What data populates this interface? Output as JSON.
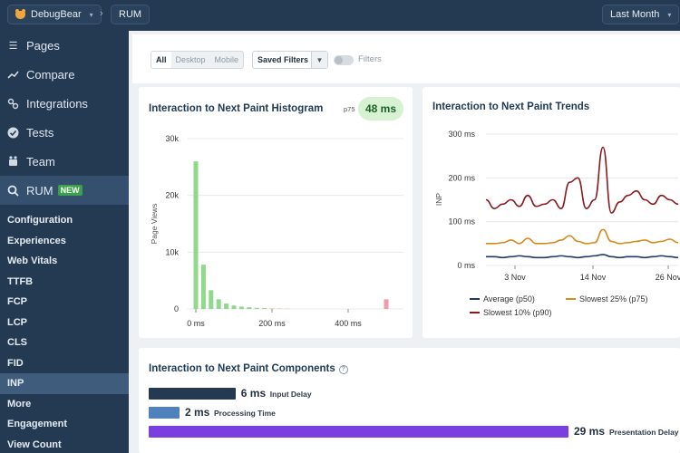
{
  "topbar": {
    "project": "DebugBear",
    "breadcrumb": "RUM",
    "date_range": "Last Month"
  },
  "sidebar": {
    "main_items": [
      {
        "label": "Pages",
        "icon": "list-icon"
      },
      {
        "label": "Compare",
        "icon": "compare-icon"
      },
      {
        "label": "Integrations",
        "icon": "integrations-icon"
      },
      {
        "label": "Tests",
        "icon": "check-circle-icon"
      },
      {
        "label": "Team",
        "icon": "team-icon"
      }
    ],
    "rum": {
      "label": "RUM",
      "badge": "NEW",
      "icon": "search-icon"
    },
    "sub_items": [
      "Configuration",
      "Experiences",
      "Web Vitals",
      "TTFB",
      "FCP",
      "LCP",
      "CLS",
      "FID",
      "INP",
      "More",
      "Engagement",
      "View Count"
    ],
    "active_sub": "INP"
  },
  "filters": {
    "segments": [
      "All",
      "Desktop",
      "Mobile"
    ],
    "selected_segment": "All",
    "saved_filters": "Saved Filters",
    "toggle_label": "Filters"
  },
  "histogram": {
    "title": "Interaction to Next Paint Histogram",
    "p75_label": "p75",
    "p75_value": "48 ms"
  },
  "trends": {
    "title": "Interaction to Next Paint Trends"
  },
  "components": {
    "title": "Interaction to Next Paint Components",
    "items": [
      {
        "value": "6 ms",
        "label": "Input Delay",
        "color": "#253a52",
        "ms": 6
      },
      {
        "value": "2 ms",
        "label": "Processing Time",
        "color": "#4f81bd",
        "ms": 2
      },
      {
        "value": "29 ms",
        "label": "Presentation Delay",
        "color": "#7b3fe0",
        "ms": 29
      }
    ]
  },
  "chart_data": [
    {
      "type": "bar",
      "ylabel": "Page Views",
      "ylim": [
        0,
        30000
      ],
      "yticks": [
        "0",
        "10k",
        "20k",
        "30k"
      ],
      "xticks": [
        "0 ms",
        "200 ms",
        "400 ms"
      ],
      "x_ms": [
        0,
        20,
        40,
        60,
        80,
        100,
        120,
        140,
        160,
        180,
        200,
        220,
        240,
        500
      ],
      "values": [
        26000,
        7800,
        3300,
        1700,
        950,
        600,
        400,
        300,
        200,
        150,
        120,
        100,
        80,
        1700
      ],
      "colors": [
        "#8fd98a",
        "#8fd98a",
        "#8fd98a",
        "#8fd98a",
        "#8fd98a",
        "#8fd98a",
        "#8fd98a",
        "#8fd98a",
        "#8fd98a",
        "#8fd98a",
        "#f2c9a0",
        "#f2c9a0",
        "#f2c9a0",
        "#f29aa7"
      ]
    },
    {
      "type": "line",
      "ylabel": "INP",
      "ylim": [
        0,
        300
      ],
      "yticks": [
        "0 ms",
        "100 ms",
        "200 ms",
        "300 ms"
      ],
      "xticks": [
        "3 Nov",
        "14 Nov",
        "26 Nov"
      ],
      "legend": [
        "Average (p50)",
        "Slowest 25% (p75)",
        "Slowest 10% (p90)"
      ],
      "series": [
        {
          "name": "Average (p50)",
          "color": "#1f3a66",
          "values": [
            20,
            20,
            18,
            20,
            22,
            20,
            18,
            18,
            20,
            22,
            20,
            18,
            20,
            22,
            25,
            20,
            18,
            20,
            20,
            18,
            20,
            22,
            20,
            18
          ]
        },
        {
          "name": "Slowest 25% (p75)",
          "color": "#d68a1a",
          "values": [
            50,
            50,
            52,
            58,
            50,
            62,
            50,
            50,
            52,
            58,
            68,
            55,
            50,
            52,
            82,
            55,
            50,
            52,
            55,
            58,
            52,
            55,
            60,
            52
          ]
        },
        {
          "name": "Slowest 10% (p90)",
          "color": "#8b1a1f",
          "values": [
            150,
            130,
            140,
            150,
            135,
            160,
            135,
            140,
            150,
            130,
            190,
            200,
            130,
            150,
            270,
            120,
            145,
            160,
            170,
            150,
            140,
            160,
            150,
            140
          ]
        }
      ]
    }
  ]
}
